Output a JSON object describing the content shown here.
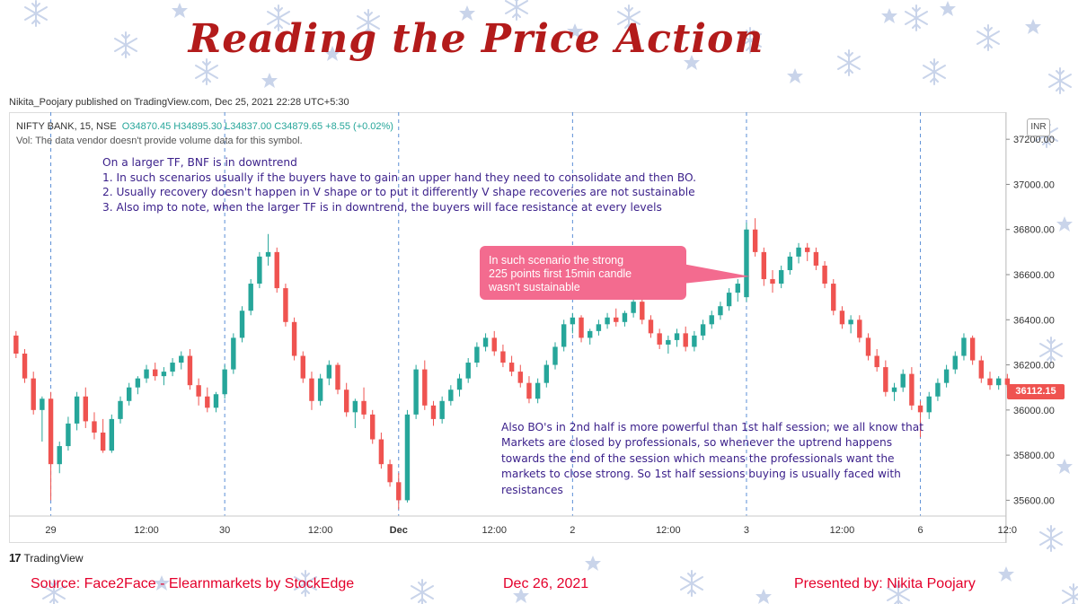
{
  "slide": {
    "title": "Reading the Price Action",
    "publisher_line": "Nikita_Poojary published on TradingView.com, Dec 25, 2021 22:28 UTC+5:30",
    "footer_source": "Source: Face2Face - Elearnmarkets by StockEdge",
    "footer_date": "Dec 26, 2021",
    "footer_presenter": "Presented by: Nikita Poojary",
    "tradingview_label": "TradingView",
    "colors": {
      "title": "#b31b1b",
      "footer": "#e4002b",
      "up": "#26a69a",
      "down": "#ef5350",
      "annotation": "#3a1f8a",
      "callout": "#f36b8f"
    }
  },
  "chart_data": {
    "type": "candlestick",
    "symbol_line": "NIFTY BANK, 15, NSE",
    "ohlc": {
      "open": "O34870.45",
      "high": "H34895.30",
      "low": "L34837.00",
      "close": "C34879.65",
      "change": "+8.55 (+0.02%)"
    },
    "volume_note": "Vol: The data vendor doesn't provide volume data for this symbol.",
    "currency": "INR",
    "last_price": "36112.15",
    "ylim": [
      35530,
      37320
    ],
    "yticks": [
      {
        "value": 37200,
        "label": "37200.00"
      },
      {
        "value": 37000,
        "label": "37000.00"
      },
      {
        "value": 36800,
        "label": "36800.00"
      },
      {
        "value": 36600,
        "label": "36600.00"
      },
      {
        "value": 36400,
        "label": "36400.00"
      },
      {
        "value": 36200,
        "label": "36200.00"
      },
      {
        "value": 36000,
        "label": "36000.00"
      },
      {
        "value": 35800,
        "label": "35800.00"
      },
      {
        "value": 35600,
        "label": "35600.00"
      }
    ],
    "xticks": [
      {
        "bar": 4,
        "label": "29",
        "bold": false
      },
      {
        "bar": 15,
        "label": "12:00",
        "bold": false
      },
      {
        "bar": 24,
        "label": "30",
        "bold": false
      },
      {
        "bar": 35,
        "label": "12:00",
        "bold": false
      },
      {
        "bar": 44,
        "label": "Dec",
        "bold": true
      },
      {
        "bar": 55,
        "label": "12:00",
        "bold": false
      },
      {
        "bar": 64,
        "label": "2",
        "bold": false
      },
      {
        "bar": 75,
        "label": "12:00",
        "bold": false
      },
      {
        "bar": 84,
        "label": "3",
        "bold": false
      },
      {
        "bar": 95,
        "label": "12:00",
        "bold": false
      },
      {
        "bar": 104,
        "label": "6",
        "bold": false
      },
      {
        "bar": 114,
        "label": "12:0",
        "bold": false
      }
    ],
    "session_starts": [
      4,
      24,
      44,
      64,
      84,
      104
    ],
    "candles": [
      [
        36330,
        36350,
        36230,
        36250
      ],
      [
        36250,
        36270,
        36120,
        36140
      ],
      [
        36140,
        36170,
        35980,
        36000
      ],
      [
        36000,
        36060,
        35860,
        36050
      ],
      [
        36050,
        36080,
        35600,
        35760
      ],
      [
        35760,
        35860,
        35720,
        35840
      ],
      [
        35840,
        35970,
        35820,
        35940
      ],
      [
        35940,
        36080,
        35910,
        36060
      ],
      [
        36060,
        36100,
        35920,
        35950
      ],
      [
        35950,
        35990,
        35870,
        35900
      ],
      [
        35900,
        35960,
        35810,
        35820
      ],
      [
        35820,
        35980,
        35810,
        35960
      ],
      [
        35960,
        36060,
        35940,
        36040
      ],
      [
        36040,
        36120,
        36020,
        36100
      ],
      [
        36100,
        36150,
        36070,
        36140
      ],
      [
        36140,
        36200,
        36120,
        36180
      ],
      [
        36180,
        36210,
        36130,
        36150
      ],
      [
        36150,
        36190,
        36110,
        36170
      ],
      [
        36170,
        36230,
        36150,
        36210
      ],
      [
        36210,
        36260,
        36180,
        36240
      ],
      [
        36240,
        36270,
        36090,
        36110
      ],
      [
        36110,
        36140,
        36020,
        36060
      ],
      [
        36060,
        36100,
        35990,
        36010
      ],
      [
        36010,
        36080,
        35990,
        36070
      ],
      [
        36070,
        36200,
        36050,
        36180
      ],
      [
        36180,
        36340,
        36160,
        36320
      ],
      [
        36320,
        36460,
        36300,
        36440
      ],
      [
        36440,
        36580,
        36420,
        36560
      ],
      [
        36560,
        36700,
        36540,
        36680
      ],
      [
        36680,
        36780,
        36640,
        36700
      ],
      [
        36700,
        36720,
        36520,
        36540
      ],
      [
        36540,
        36560,
        36370,
        36390
      ],
      [
        36390,
        36410,
        36220,
        36240
      ],
      [
        36240,
        36260,
        36120,
        36140
      ],
      [
        36140,
        36170,
        36000,
        36040
      ],
      [
        36040,
        36160,
        36020,
        36140
      ],
      [
        36140,
        36220,
        36110,
        36200
      ],
      [
        36200,
        36210,
        36070,
        36090
      ],
      [
        36090,
        36120,
        35970,
        35990
      ],
      [
        35990,
        36050,
        35920,
        36040
      ],
      [
        36040,
        36100,
        35960,
        35980
      ],
      [
        35980,
        36000,
        35850,
        35870
      ],
      [
        35870,
        35900,
        35740,
        35760
      ],
      [
        35760,
        35780,
        35660,
        35680
      ],
      [
        35680,
        35720,
        35560,
        35600
      ],
      [
        35600,
        36000,
        35590,
        35980
      ],
      [
        35980,
        36200,
        35960,
        36180
      ],
      [
        36180,
        36220,
        36000,
        36020
      ],
      [
        36020,
        36040,
        35930,
        35960
      ],
      [
        35960,
        36060,
        35940,
        36040
      ],
      [
        36040,
        36110,
        36020,
        36090
      ],
      [
        36090,
        36160,
        36060,
        36140
      ],
      [
        36140,
        36230,
        36120,
        36210
      ],
      [
        36210,
        36300,
        36190,
        36280
      ],
      [
        36280,
        36340,
        36260,
        36320
      ],
      [
        36320,
        36350,
        36240,
        36260
      ],
      [
        36260,
        36290,
        36190,
        36210
      ],
      [
        36210,
        36240,
        36150,
        36170
      ],
      [
        36170,
        36200,
        36100,
        36120
      ],
      [
        36120,
        36150,
        36030,
        36050
      ],
      [
        36050,
        36140,
        36030,
        36120
      ],
      [
        36120,
        36220,
        36100,
        36200
      ],
      [
        36200,
        36300,
        36180,
        36280
      ],
      [
        36280,
        36400,
        36260,
        36380
      ],
      [
        36380,
        36430,
        36340,
        36410
      ],
      [
        36410,
        36420,
        36300,
        36320
      ],
      [
        36320,
        36360,
        36290,
        36350
      ],
      [
        36350,
        36400,
        36330,
        36380
      ],
      [
        36380,
        36430,
        36360,
        36410
      ],
      [
        36410,
        36450,
        36370,
        36390
      ],
      [
        36390,
        36440,
        36370,
        36430
      ],
      [
        36430,
        36500,
        36410,
        36480
      ],
      [
        36480,
        36520,
        36380,
        36400
      ],
      [
        36400,
        36420,
        36320,
        36340
      ],
      [
        36340,
        36360,
        36270,
        36290
      ],
      [
        36290,
        36330,
        36250,
        36310
      ],
      [
        36310,
        36360,
        36280,
        36340
      ],
      [
        36340,
        36370,
        36260,
        36280
      ],
      [
        36280,
        36350,
        36260,
        36330
      ],
      [
        36330,
        36400,
        36310,
        36380
      ],
      [
        36380,
        36440,
        36360,
        36420
      ],
      [
        36420,
        36480,
        36400,
        36460
      ],
      [
        36460,
        36540,
        36440,
        36520
      ],
      [
        36520,
        36580,
        36480,
        36560
      ],
      [
        36500,
        36830,
        36480,
        36800
      ],
      [
        36800,
        36850,
        36680,
        36700
      ],
      [
        36700,
        36720,
        36550,
        36580
      ],
      [
        36580,
        36620,
        36520,
        36560
      ],
      [
        36560,
        36640,
        36540,
        36620
      ],
      [
        36620,
        36700,
        36600,
        36680
      ],
      [
        36680,
        36740,
        36650,
        36720
      ],
      [
        36720,
        36740,
        36660,
        36700
      ],
      [
        36700,
        36720,
        36620,
        36640
      ],
      [
        36640,
        36660,
        36540,
        36560
      ],
      [
        36560,
        36580,
        36420,
        36440
      ],
      [
        36440,
        36460,
        36360,
        36380
      ],
      [
        36380,
        36420,
        36340,
        36400
      ],
      [
        36400,
        36420,
        36300,
        36320
      ],
      [
        36320,
        36340,
        36220,
        36240
      ],
      [
        36240,
        36270,
        36170,
        36190
      ],
      [
        36190,
        36220,
        36060,
        36080
      ],
      [
        36080,
        36120,
        36040,
        36100
      ],
      [
        36100,
        36180,
        36080,
        36160
      ],
      [
        36160,
        36190,
        36000,
        36020
      ],
      [
        36020,
        36040,
        35880,
        35990
      ],
      [
        35990,
        36080,
        35960,
        36060
      ],
      [
        36060,
        36140,
        36040,
        36120
      ],
      [
        36120,
        36200,
        36100,
        36180
      ],
      [
        36180,
        36260,
        36160,
        36240
      ],
      [
        36240,
        36340,
        36220,
        36320
      ],
      [
        36320,
        36330,
        36200,
        36220
      ],
      [
        36220,
        36240,
        36120,
        36140
      ],
      [
        36140,
        36170,
        36090,
        36110
      ],
      [
        36110,
        36150,
        36090,
        36140
      ],
      [
        36140,
        36160,
        36100,
        36112
      ]
    ]
  },
  "annotations": {
    "main": [
      "On a larger TF, BNF is in downtrend",
      "1. In such scenarios usually if the buyers have to gain an upper hand they need to consolidate and then BO.",
      "2. Usually recovery doesn't happen in V shape or to put it differently V shape recoveries are not sustainable",
      "3. Also imp to note, when the larger TF is in downtrend, the buyers will face resistance at every levels"
    ],
    "callout": [
      "In such scenario the strong",
      "225 points first 15min candle",
      "wasn't sustainable"
    ],
    "bottom": "Also BO's in 2nd half is more powerful than 1st half session; we all know that Markets are closed by professionals, so whenever the uptrend happens towards the end of the session which means the professionals want the markets to close strong. So 1st half sessions buying is usually faced with resistances"
  }
}
